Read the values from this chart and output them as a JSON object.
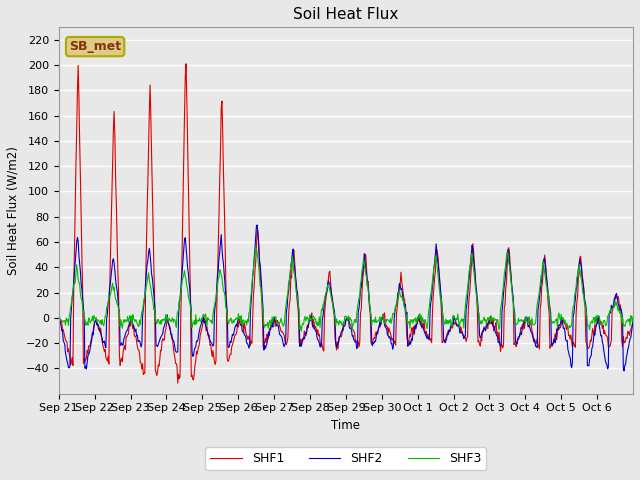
{
  "title": "Soil Heat Flux",
  "ylabel": "Soil Heat Flux (W/m2)",
  "xlabel": "Time",
  "ylim": [
    -60,
    230
  ],
  "yticks": [
    -40,
    -20,
    0,
    20,
    40,
    60,
    80,
    100,
    120,
    140,
    160,
    180,
    200,
    220
  ],
  "legend_labels": [
    "SHF1",
    "SHF2",
    "SHF3"
  ],
  "colors": [
    "#dd0000",
    "#0000cc",
    "#00bb00"
  ],
  "station_label": "SB_met",
  "station_label_color": "#883300",
  "station_box_color": "#ddcc88",
  "station_box_edge": "#aaaa00",
  "background_color": "#e8e8e8",
  "plot_bg_color": "#e8e8e8",
  "grid_color": "#ffffff",
  "n_days": 16,
  "title_fontsize": 11,
  "tick_fontsize": 8,
  "legend_fontsize": 9,
  "x_tick_labels": [
    "Sep 21",
    "Sep 22",
    "Sep 23",
    "Sep 24",
    "Sep 25",
    "Sep 26",
    "Sep 27",
    "Sep 28",
    "Sep 29",
    "Sep 30",
    "Oct 1",
    "Oct 2",
    "Oct 3",
    "Oct 4",
    "Oct 5",
    "Oct 6"
  ],
  "day_peaks_shf1": [
    203,
    167,
    188,
    215,
    180,
    75,
    55,
    38,
    55,
    35,
    57,
    60,
    58,
    50,
    50,
    20
  ],
  "day_peaks_shf2": [
    65,
    48,
    57,
    65,
    65,
    79,
    55,
    30,
    50,
    27,
    58,
    58,
    57,
    50,
    48,
    18
  ],
  "day_peaks_shf3": [
    40,
    28,
    35,
    38,
    40,
    60,
    50,
    27,
    47,
    22,
    50,
    52,
    55,
    45,
    42,
    12
  ],
  "day_neg_shf1": [
    35,
    33,
    43,
    48,
    33,
    20,
    20,
    22,
    20,
    18,
    18,
    18,
    22,
    22,
    22,
    20
  ],
  "day_neg_shf2": [
    40,
    22,
    22,
    28,
    22,
    22,
    22,
    22,
    22,
    22,
    18,
    15,
    20,
    22,
    38,
    40
  ],
  "day_neg_shf3": [
    15,
    13,
    13,
    13,
    13,
    18,
    18,
    14,
    13,
    12,
    12,
    12,
    12,
    12,
    22,
    22
  ]
}
